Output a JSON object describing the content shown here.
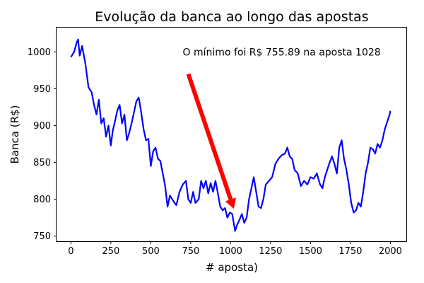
{
  "chart_data": {
    "type": "line",
    "title": "Evolução da banca ao longo das apostas",
    "xlabel": "# aposta)",
    "ylabel": "Banca (R$)",
    "xlim": [
      -90,
      2100
    ],
    "ylim": [
      743,
      1033
    ],
    "xticks": [
      0,
      250,
      500,
      750,
      1000,
      1250,
      1500,
      1750,
      2000
    ],
    "yticks": [
      750,
      800,
      850,
      900,
      950,
      1000
    ],
    "grid": false,
    "series": [
      {
        "color": "#0000ff",
        "x": [
          0,
          20,
          35,
          45,
          55,
          70,
          90,
          110,
          130,
          145,
          160,
          175,
          190,
          205,
          220,
          235,
          250,
          262,
          275,
          290,
          305,
          320,
          335,
          350,
          365,
          380,
          395,
          410,
          425,
          440,
          455,
          470,
          485,
          500,
          515,
          530,
          545,
          560,
          575,
          590,
          605,
          620,
          640,
          660,
          680,
          700,
          720,
          735,
          750,
          765,
          780,
          800,
          815,
          830,
          845,
          860,
          875,
          890,
          905,
          920,
          935,
          950,
          965,
          980,
          995,
          1010,
          1028,
          1040,
          1055,
          1070,
          1085,
          1100,
          1115,
          1130,
          1145,
          1160,
          1175,
          1190,
          1205,
          1220,
          1240,
          1260,
          1280,
          1300,
          1320,
          1340,
          1355,
          1370,
          1385,
          1400,
          1420,
          1440,
          1460,
          1480,
          1500,
          1520,
          1540,
          1560,
          1575,
          1590,
          1605,
          1620,
          1635,
          1650,
          1665,
          1680,
          1695,
          1710,
          1725,
          1740,
          1755,
          1770,
          1785,
          1800,
          1815,
          1830,
          1845,
          1860,
          1875,
          1890,
          1905,
          1920,
          1935,
          1950,
          1965,
          1980,
          1995,
          2000
        ],
        "y": [
          993,
          1000,
          1012,
          1017,
          995,
          1008,
          985,
          952,
          945,
          928,
          915,
          935,
          903,
          910,
          885,
          900,
          873,
          893,
          905,
          920,
          928,
          903,
          915,
          880,
          890,
          903,
          918,
          933,
          938,
          918,
          895,
          880,
          882,
          845,
          865,
          870,
          855,
          852,
          835,
          818,
          790,
          805,
          798,
          792,
          810,
          820,
          825,
          800,
          795,
          810,
          795,
          800,
          825,
          815,
          825,
          808,
          822,
          810,
          825,
          808,
          790,
          785,
          788,
          775,
          782,
          780,
          757,
          765,
          772,
          780,
          768,
          775,
          800,
          815,
          830,
          810,
          790,
          788,
          800,
          820,
          825,
          830,
          848,
          855,
          860,
          862,
          870,
          858,
          855,
          840,
          835,
          818,
          825,
          820,
          830,
          828,
          835,
          820,
          815,
          830,
          840,
          850,
          858,
          848,
          835,
          870,
          880,
          855,
          840,
          820,
          795,
          782,
          785,
          795,
          790,
          810,
          835,
          850,
          870,
          868,
          862,
          875,
          870,
          880,
          895,
          905,
          915,
          920
        ]
      }
    ],
    "annotations": [
      {
        "text": "O mínimo foi R$ 755.89 na aposta 1028",
        "x": 700,
        "y": 1000
      }
    ],
    "arrow": {
      "color": "#ff0000",
      "from": [
        735,
        970
      ],
      "to": [
        1020,
        787
      ]
    }
  }
}
